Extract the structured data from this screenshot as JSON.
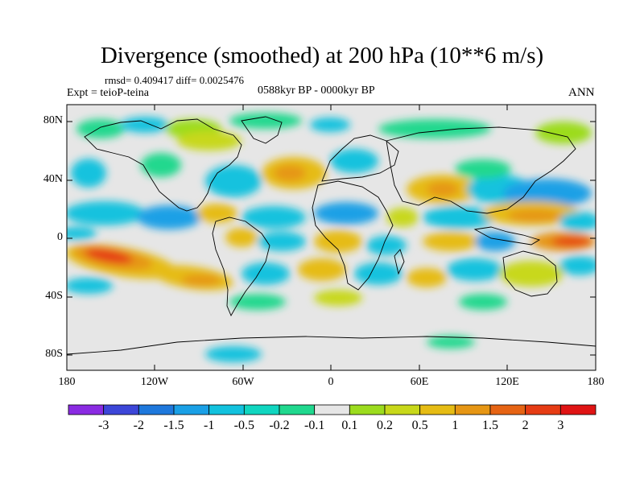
{
  "header": {
    "title": "Divergence (smoothed) at 200 hPa (10**6 m/s)",
    "stats": "rmsd= 0.409417  diff= 0.0025476",
    "expt": "Expt = teioP-teina",
    "period": "0588kyr BP - 0000kyr BP",
    "season": "ANN"
  },
  "axes": {
    "lat_labels": [
      "80N",
      "40N",
      "0",
      "40S",
      "80S"
    ],
    "lon_labels": [
      "180",
      "120W",
      "60W",
      "0",
      "60E",
      "120E",
      "180"
    ]
  },
  "colorbar": {
    "labels": [
      "-3",
      "-2",
      "-1.5",
      "-1",
      "-0.5",
      "-0.2",
      "-0.1",
      "0.1",
      "0.2",
      "0.5",
      "1",
      "1.5",
      "2",
      "3"
    ],
    "colors": [
      "#8a2be2",
      "#3c46d8",
      "#1e78dc",
      "#1aa0e6",
      "#12c2de",
      "#10d6c0",
      "#20d88e",
      "#e6e6e6",
      "#9cdc1e",
      "#c8d81a",
      "#e6bc14",
      "#e69614",
      "#e66414",
      "#e63c14",
      "#e01414"
    ]
  },
  "map_colors": {
    "land_outline": "#000000",
    "frame": "#000000"
  }
}
